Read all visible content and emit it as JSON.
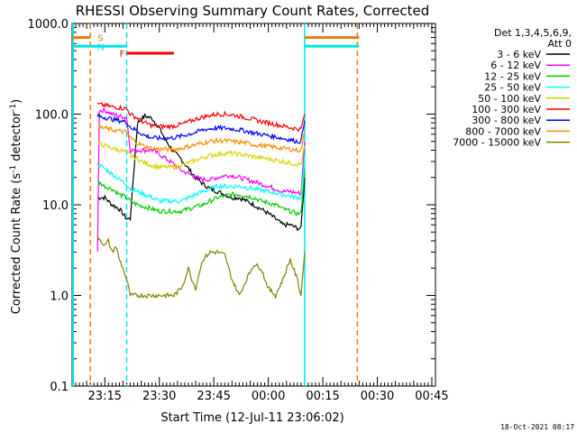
{
  "chart_data": {
    "type": "line",
    "title": "RHESSI Observing Summary Count Rates, Corrected",
    "xlabel": "Start Time (12-Jul-11 23:06:02)",
    "ylabel": "Corrected Count Rate (s⁻¹ detector⁻¹)",
    "yscale": "log",
    "ylim": [
      0.1,
      1000
    ],
    "y_tick_labels": [
      "1000.0",
      "100.0",
      "10.0",
      "1.0",
      "0.1"
    ],
    "y_tick_values": [
      1000,
      100,
      10,
      1,
      0.1
    ],
    "xlim_minutes": [
      0,
      100
    ],
    "x_tick_labels": [
      "23:15",
      "23:30",
      "23:45",
      "00:00",
      "00:15",
      "00:30",
      "00:45"
    ],
    "x_tick_minutes": [
      9,
      24,
      39,
      54,
      69,
      84,
      99
    ],
    "legend_header": [
      "Det 1,3,4,5,6,9,",
      "Att 0"
    ],
    "legend_position": "right",
    "timestamp": "18-Oct-2021 08:17",
    "flags": [
      {
        "label": "S",
        "color": "#e87d14",
        "start": 0,
        "end": 5,
        "y": 700
      },
      {
        "label": "N",
        "color": "#00e5e5",
        "start": 0,
        "end": 15,
        "y": 560
      },
      {
        "label": "F",
        "color": "#ff0000",
        "start": 15,
        "end": 28,
        "y": 470
      }
    ],
    "right_flags": [
      {
        "color": "#e87d14",
        "start": 64,
        "end": 79,
        "y": 700
      },
      {
        "color": "#00e5e5",
        "start": 64,
        "end": 79,
        "y": 560
      }
    ],
    "vertical_lines": [
      {
        "minute": 5,
        "color": "#e87d14",
        "style": "dashed"
      },
      {
        "minute": 15,
        "color": "#00e5e5",
        "style": "dashed"
      },
      {
        "minute": 64,
        "color": "#00e5e5",
        "style": "solid"
      },
      {
        "minute": 78.5,
        "color": "#e87d14",
        "style": "dashed"
      }
    ],
    "series": [
      {
        "name": "3 - 6 keV",
        "color": "#000000",
        "x": [
          7,
          9,
          11,
          13,
          15,
          16,
          18,
          20,
          22,
          24,
          26,
          28,
          30,
          32,
          34,
          36,
          38,
          40,
          42,
          44,
          46,
          48,
          50,
          52,
          54,
          56,
          58,
          60,
          62,
          63,
          64
        ],
        "y": [
          12,
          12,
          10,
          9,
          7,
          7,
          80,
          95,
          90,
          70,
          50,
          38,
          32,
          25,
          20,
          17,
          15,
          14,
          13,
          12,
          12,
          11,
          10,
          9,
          8,
          7,
          6,
          6,
          5.5,
          5.5,
          20
        ]
      },
      {
        "name": "6 - 12 keV",
        "color": "#ff00ff",
        "x": [
          7,
          7.5,
          9,
          11,
          13,
          15,
          16,
          18,
          20,
          22,
          24,
          26,
          28,
          30,
          32,
          34,
          36,
          38,
          40,
          42,
          44,
          46,
          48,
          50,
          52,
          54,
          56,
          58,
          60,
          62,
          63,
          64
        ],
        "y": [
          3,
          110,
          110,
          100,
          95,
          92,
          40,
          40,
          40,
          40,
          36,
          32,
          28,
          24,
          22,
          20,
          19,
          19,
          20,
          21,
          21,
          20,
          19,
          18,
          17,
          16,
          15,
          14,
          14,
          13.5,
          13.5,
          50
        ]
      },
      {
        "name": "12 - 25 keV",
        "color": "#00cc00",
        "x": [
          7,
          9,
          11,
          13,
          15,
          16,
          18,
          20,
          22,
          24,
          26,
          28,
          30,
          32,
          34,
          36,
          38,
          40,
          42,
          44,
          46,
          48,
          50,
          52,
          54,
          56,
          58,
          60,
          62,
          63,
          64
        ],
        "y": [
          18,
          16,
          15,
          13,
          12,
          11,
          10,
          9.5,
          9,
          8.5,
          8.5,
          8.5,
          8.5,
          9,
          9.5,
          10,
          11,
          12,
          12.5,
          13,
          13,
          12.5,
          12,
          11,
          10.5,
          10,
          9,
          8.5,
          8,
          8,
          25
        ]
      },
      {
        "name": "25 - 50 keV",
        "color": "#00ffff",
        "x": [
          7,
          9,
          11,
          13,
          15,
          16,
          18,
          20,
          22,
          24,
          26,
          28,
          30,
          32,
          34,
          36,
          38,
          40,
          42,
          44,
          46,
          48,
          50,
          52,
          54,
          56,
          58,
          60,
          62,
          63,
          64
        ],
        "y": [
          28,
          25,
          22,
          19,
          17,
          15,
          14,
          13,
          12,
          11,
          11,
          11,
          11,
          12,
          13,
          14,
          15,
          16,
          16,
          16,
          16,
          15.5,
          15,
          14.5,
          14,
          13.5,
          13,
          12.5,
          12,
          12,
          35
        ]
      },
      {
        "name": "50 - 100 keV",
        "color": "#d5d500",
        "x": [
          7,
          9,
          11,
          13,
          15,
          16,
          18,
          20,
          22,
          24,
          26,
          28,
          30,
          32,
          34,
          36,
          38,
          40,
          42,
          44,
          46,
          48,
          50,
          52,
          54,
          56,
          58,
          60,
          62,
          63,
          64
        ],
        "y": [
          48,
          45,
          42,
          40,
          38,
          35,
          32,
          29,
          27,
          26,
          26,
          26,
          27,
          29,
          31,
          33,
          35,
          36,
          37,
          37,
          36,
          35,
          34,
          33,
          32,
          31,
          30,
          29,
          28,
          28,
          45
        ]
      },
      {
        "name": "100 - 300 keV",
        "color": "#ff0000",
        "x": [
          7,
          9,
          11,
          13,
          15,
          16,
          18,
          20,
          22,
          24,
          26,
          28,
          30,
          32,
          34,
          36,
          38,
          40,
          42,
          44,
          46,
          48,
          50,
          52,
          54,
          56,
          58,
          60,
          62,
          63,
          64
        ],
        "y": [
          128,
          125,
          120,
          118,
          115,
          100,
          90,
          80,
          75,
          73,
          73,
          74,
          77,
          82,
          88,
          93,
          97,
          100,
          100,
          98,
          95,
          91,
          87,
          83,
          80,
          77,
          74,
          71,
          69,
          68,
          100
        ]
      },
      {
        "name": "300 - 800 keV",
        "color": "#0000ff",
        "x": [
          7,
          9,
          11,
          13,
          15,
          16,
          18,
          20,
          22,
          24,
          26,
          28,
          30,
          32,
          34,
          36,
          38,
          40,
          42,
          44,
          46,
          48,
          50,
          52,
          54,
          56,
          58,
          60,
          62,
          63,
          64
        ],
        "y": [
          95,
          92,
          88,
          85,
          82,
          72,
          65,
          58,
          55,
          54,
          54,
          55,
          57,
          60,
          63,
          67,
          69,
          70,
          70,
          69,
          67,
          65,
          62,
          60,
          58,
          56,
          54,
          52,
          50,
          50,
          85
        ]
      },
      {
        "name": "800 - 7000 keV",
        "color": "#ff8c00",
        "x": [
          7,
          9,
          11,
          13,
          15,
          16,
          18,
          20,
          22,
          24,
          26,
          28,
          30,
          32,
          34,
          36,
          38,
          40,
          42,
          44,
          46,
          48,
          50,
          52,
          54,
          56,
          58,
          60,
          62,
          63,
          64
        ],
        "y": [
          72,
          70,
          67,
          65,
          63,
          55,
          48,
          44,
          42,
          41,
          41,
          41,
          42,
          44,
          46,
          48,
          50,
          51,
          51,
          50,
          49,
          48,
          46,
          45,
          44,
          43,
          42,
          41,
          40,
          40,
          65
        ]
      },
      {
        "name": "7000 - 15000 keV",
        "color": "#808000",
        "x": [
          7,
          8,
          9,
          10,
          11,
          12,
          13,
          14,
          15,
          16,
          18,
          20,
          22,
          24,
          26,
          28,
          30,
          31,
          32,
          33,
          34,
          35,
          36,
          38,
          40,
          42,
          44,
          46,
          48,
          50,
          52,
          54,
          56,
          58,
          60,
          62,
          63,
          64
        ],
        "y": [
          4.5,
          4,
          3.5,
          4,
          3,
          3.5,
          2.5,
          2,
          1.5,
          1,
          1,
          1,
          1,
          1,
          1,
          1,
          1.2,
          1.5,
          2,
          1.5,
          1.2,
          1.8,
          2.5,
          3,
          3,
          2.8,
          1.5,
          1,
          1.5,
          2.2,
          2,
          1.2,
          1,
          1.5,
          2.5,
          1.5,
          1,
          3
        ]
      }
    ]
  }
}
